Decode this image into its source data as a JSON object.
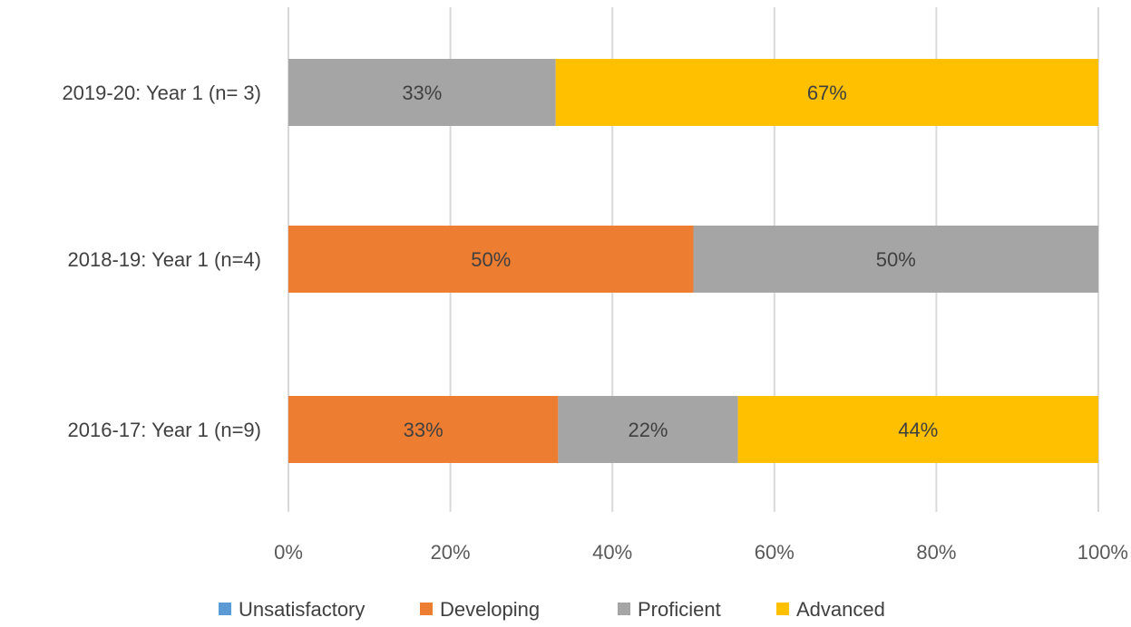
{
  "chart_data": {
    "type": "bar",
    "orientation": "horizontal",
    "stacked": true,
    "percent_stacked": true,
    "categories": [
      "2019-20: Year 1 (n= 3)",
      "2018-19: Year 1 (n=4)",
      "2016-17: Year 1 (n=9)"
    ],
    "series": [
      {
        "name": "Unsatisfactory",
        "color": "#5b9bd5",
        "values": [
          0,
          0,
          0
        ],
        "labels": [
          "",
          "",
          ""
        ]
      },
      {
        "name": "Developing",
        "color": "#ed7d31",
        "values": [
          0,
          50,
          33.3
        ],
        "labels": [
          "",
          "50%",
          "33%"
        ]
      },
      {
        "name": "Proficient",
        "color": "#a5a5a5",
        "values": [
          33,
          50,
          22.2
        ],
        "labels": [
          "33%",
          "50%",
          "22%"
        ]
      },
      {
        "name": "Advanced",
        "color": "#ffc000",
        "values": [
          67,
          0,
          44.5
        ],
        "labels": [
          "67%",
          "",
          "44%"
        ]
      }
    ],
    "x_ticks": [
      "0%",
      "20%",
      "40%",
      "60%",
      "80%",
      "100%"
    ],
    "xlim": [
      0,
      100
    ],
    "title": "",
    "xlabel": "",
    "ylabel": "",
    "grid": "vertical",
    "legend_position": "bottom"
  }
}
